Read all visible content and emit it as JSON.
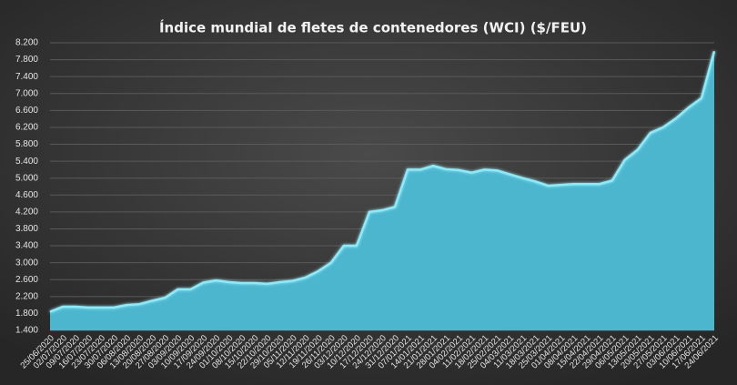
{
  "chart_data": {
    "type": "area",
    "title": "Índice mundial de fletes de contenedores (WCI) ($/FEU)",
    "categories": [
      "25/06/2020",
      "02/07/2020",
      "09/07/2020",
      "16/07/2020",
      "23/07/2020",
      "30/07/2020",
      "06/08/2020",
      "13/08/2020",
      "20/08/2020",
      "27/08/2020",
      "03/09/2020",
      "10/09/2020",
      "17/09/2020",
      "24/09/2020",
      "01/10/2020",
      "08/10/2020",
      "15/10/2020",
      "22/10/2020",
      "29/10/2020",
      "05/11/2020",
      "12/11/2020",
      "19/11/2020",
      "26/11/2020",
      "03/12/2020",
      "10/12/2020",
      "17/12/2020",
      "24/12/2020",
      "31/12/2020",
      "07/01/2021",
      "14/01/2021",
      "21/01/2021",
      "28/01/2021",
      "04/02/2021",
      "11/02/2021",
      "18/02/2021",
      "25/02/2021",
      "04/03/2021",
      "11/03/2021",
      "18/03/2021",
      "25/03/2021",
      "01/04/2021",
      "08/04/2021",
      "15/04/2021",
      "22/04/2021",
      "29/04/2021",
      "06/05/2021",
      "13/05/2021",
      "20/05/2021",
      "27/05/2021",
      "03/06/2021",
      "10/06/2021",
      "17/06/2021",
      "24/06/2021"
    ],
    "values": [
      1840,
      1960,
      1960,
      1940,
      1940,
      1940,
      2000,
      2020,
      2100,
      2170,
      2370,
      2370,
      2530,
      2580,
      2540,
      2520,
      2520,
      2500,
      2540,
      2570,
      2650,
      2800,
      3000,
      3400,
      3400,
      4200,
      4240,
      4320,
      5200,
      5200,
      5290,
      5210,
      5190,
      5130,
      5200,
      5180,
      5090,
      5000,
      4920,
      4820,
      4840,
      4860,
      4860,
      4860,
      4940,
      5430,
      5670,
      6070,
      6200,
      6410,
      6670,
      6890,
      8000
    ],
    "color": "#4db6cf",
    "line_color": "#8fe9f7",
    "ylim": [
      1400,
      8200
    ],
    "yticks": [
      {
        "value": 1400,
        "label": "1.400"
      },
      {
        "value": 1800,
        "label": "1.800"
      },
      {
        "value": 2200,
        "label": "2.200"
      },
      {
        "value": 2600,
        "label": "2.600"
      },
      {
        "value": 3000,
        "label": "3.000"
      },
      {
        "value": 3400,
        "label": "3.400"
      },
      {
        "value": 3800,
        "label": "3.800"
      },
      {
        "value": 4200,
        "label": "4.200"
      },
      {
        "value": 4600,
        "label": "4.600"
      },
      {
        "value": 5000,
        "label": "5.000"
      },
      {
        "value": 5400,
        "label": "5.400"
      },
      {
        "value": 5800,
        "label": "5.800"
      },
      {
        "value": 6200,
        "label": "6.200"
      },
      {
        "value": 6600,
        "label": "6.600"
      },
      {
        "value": 7000,
        "label": "7.000"
      },
      {
        "value": 7400,
        "label": "7.400"
      },
      {
        "value": 7800,
        "label": "7.800"
      },
      {
        "value": 8200,
        "label": "8.200"
      }
    ],
    "grid": true
  }
}
